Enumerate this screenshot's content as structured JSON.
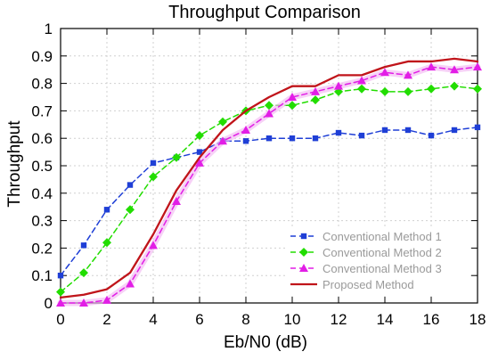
{
  "chart_data": {
    "type": "line",
    "title": "Throughput Comparison",
    "xlabel": "Eb/N0 (dB)",
    "ylabel": "Throughput",
    "xlim": [
      0,
      18
    ],
    "ylim": [
      0,
      1
    ],
    "x": [
      0,
      1,
      2,
      3,
      4,
      5,
      6,
      7,
      8,
      9,
      10,
      11,
      12,
      13,
      14,
      15,
      16,
      17,
      18
    ],
    "xticks": [
      0,
      2,
      4,
      6,
      8,
      10,
      12,
      14,
      16,
      18
    ],
    "yticks": [
      0,
      0.1,
      0.2,
      0.3,
      0.4,
      0.5,
      0.6,
      0.7,
      0.8,
      0.9,
      1
    ],
    "xtick_labels": [
      "0",
      "2",
      "4",
      "6",
      "8",
      "10",
      "12",
      "14",
      "16",
      "18"
    ],
    "ytick_labels": [
      "0",
      "0.1",
      "0.2",
      "0.3",
      "0.4",
      "0.5",
      "0.6",
      "0.7",
      "0.8",
      "0.9",
      "1"
    ],
    "grid": true,
    "legend_position": "bottom-right",
    "series": [
      {
        "name": "Conventional Method 1",
        "color": "#1f3fd6",
        "line_style": "dashed",
        "marker": "square",
        "values": [
          0.1,
          0.21,
          0.34,
          0.43,
          0.51,
          0.53,
          0.55,
          0.59,
          0.59,
          0.6,
          0.6,
          0.6,
          0.62,
          0.61,
          0.63,
          0.63,
          0.61,
          0.63,
          0.64
        ]
      },
      {
        "name": "Conventional Method 2",
        "color": "#22dd00",
        "line_style": "dashed",
        "marker": "diamond",
        "values": [
          0.04,
          0.11,
          0.22,
          0.34,
          0.46,
          0.53,
          0.61,
          0.66,
          0.7,
          0.72,
          0.72,
          0.74,
          0.77,
          0.78,
          0.77,
          0.77,
          0.78,
          0.79,
          0.78
        ]
      },
      {
        "name": "Conventional Method 3",
        "color": "#e21ee6",
        "line_style": "dashed",
        "marker": "triangle",
        "values": [
          0,
          0,
          0.01,
          0.07,
          0.21,
          0.37,
          0.51,
          0.59,
          0.63,
          0.69,
          0.75,
          0.77,
          0.79,
          0.81,
          0.84,
          0.83,
          0.86,
          0.85,
          0.86
        ]
      },
      {
        "name": "Proposed Method",
        "color": "#c0141a",
        "line_style": "solid",
        "marker": "none",
        "values": [
          0.02,
          0.03,
          0.05,
          0.11,
          0.25,
          0.41,
          0.53,
          0.63,
          0.7,
          0.75,
          0.79,
          0.79,
          0.83,
          0.83,
          0.86,
          0.88,
          0.88,
          0.89,
          0.88
        ]
      }
    ]
  }
}
